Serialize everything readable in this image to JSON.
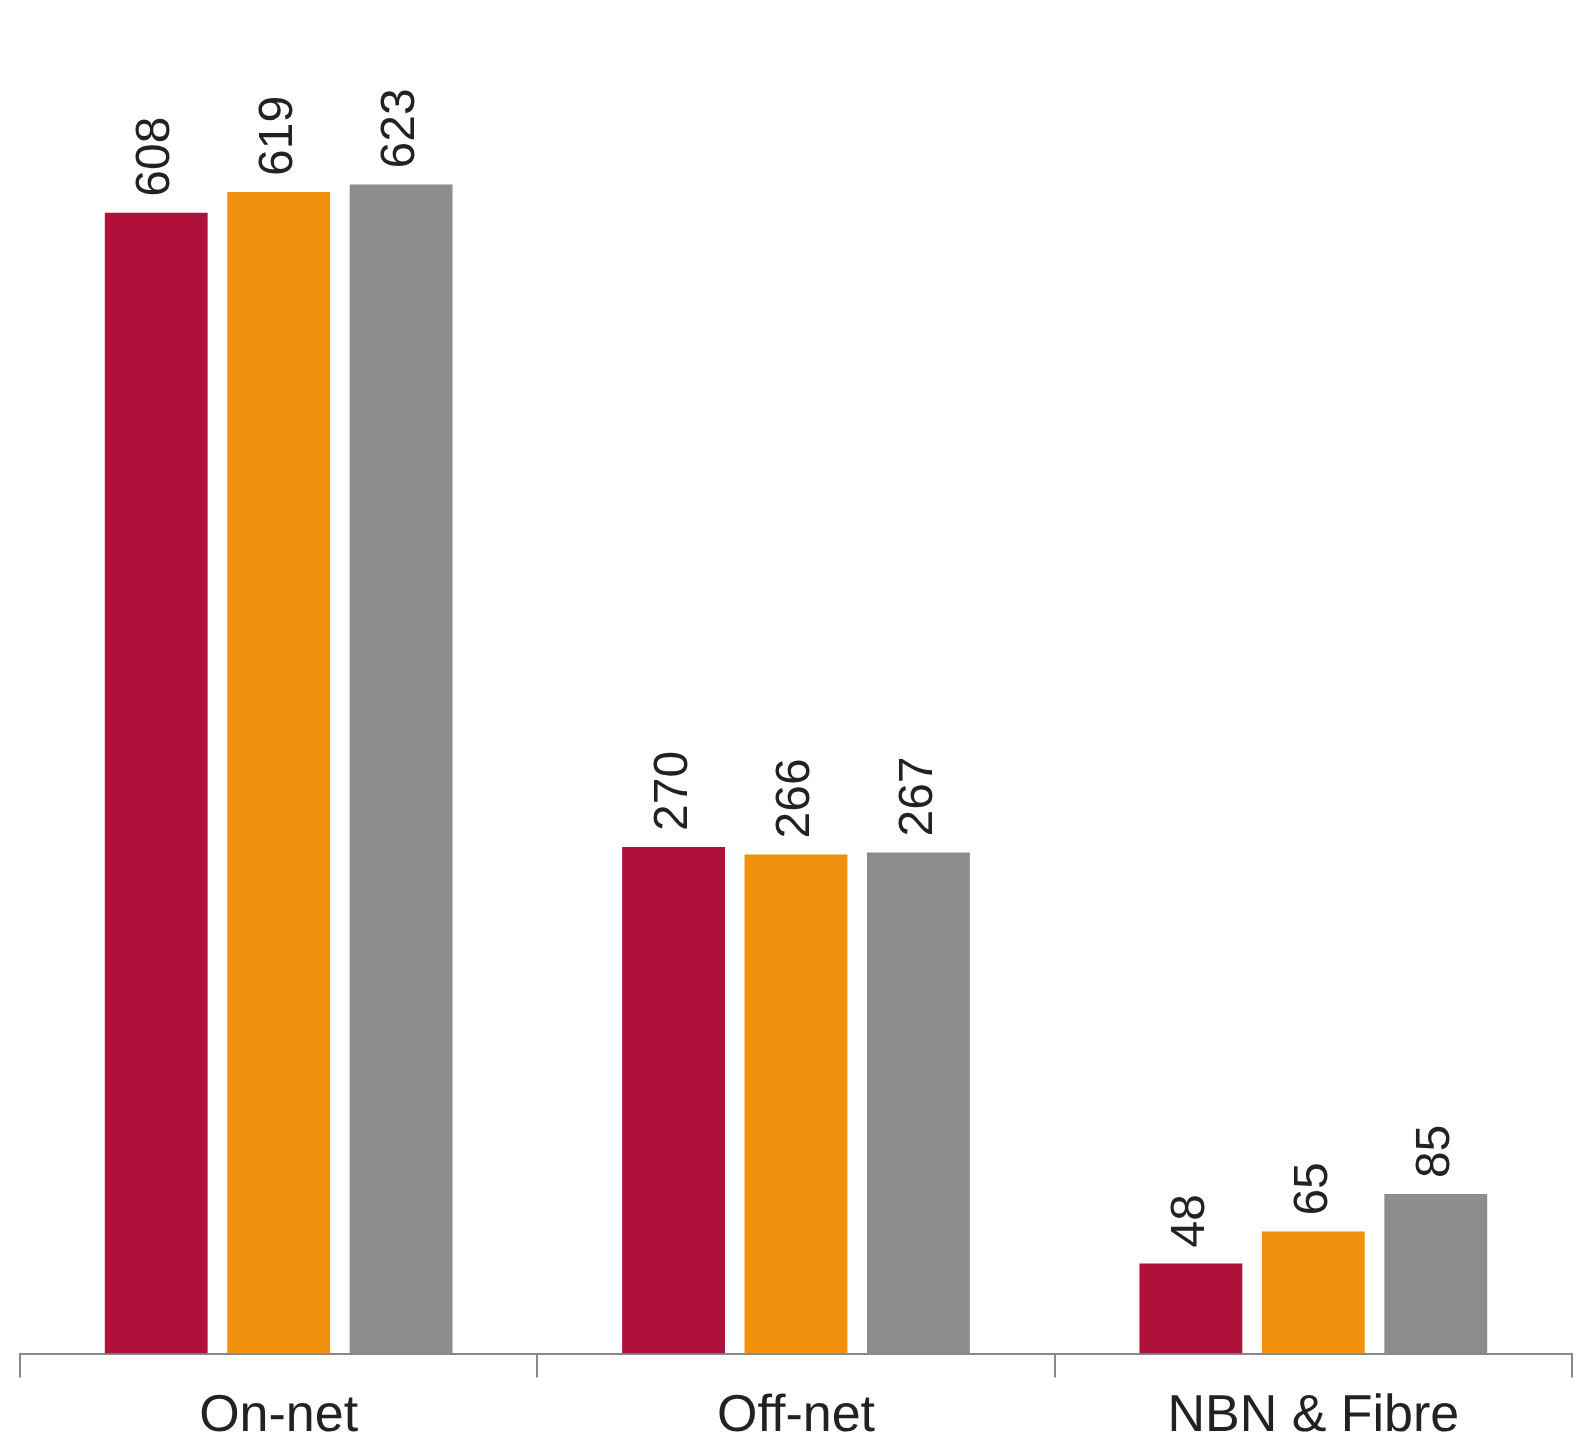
{
  "chart_data": {
    "type": "bar",
    "categories": [
      "On-net",
      "Off-net",
      "NBN & Fibre"
    ],
    "series": [
      {
        "color": "#b0113a",
        "values": [
          608,
          270,
          48
        ]
      },
      {
        "color": "#f0900c",
        "values": [
          619,
          266,
          65
        ]
      },
      {
        "color": "#8c8c8c",
        "values": [
          623,
          267,
          85
        ]
      }
    ],
    "data_labels": true,
    "grid": false,
    "legend": false
  }
}
